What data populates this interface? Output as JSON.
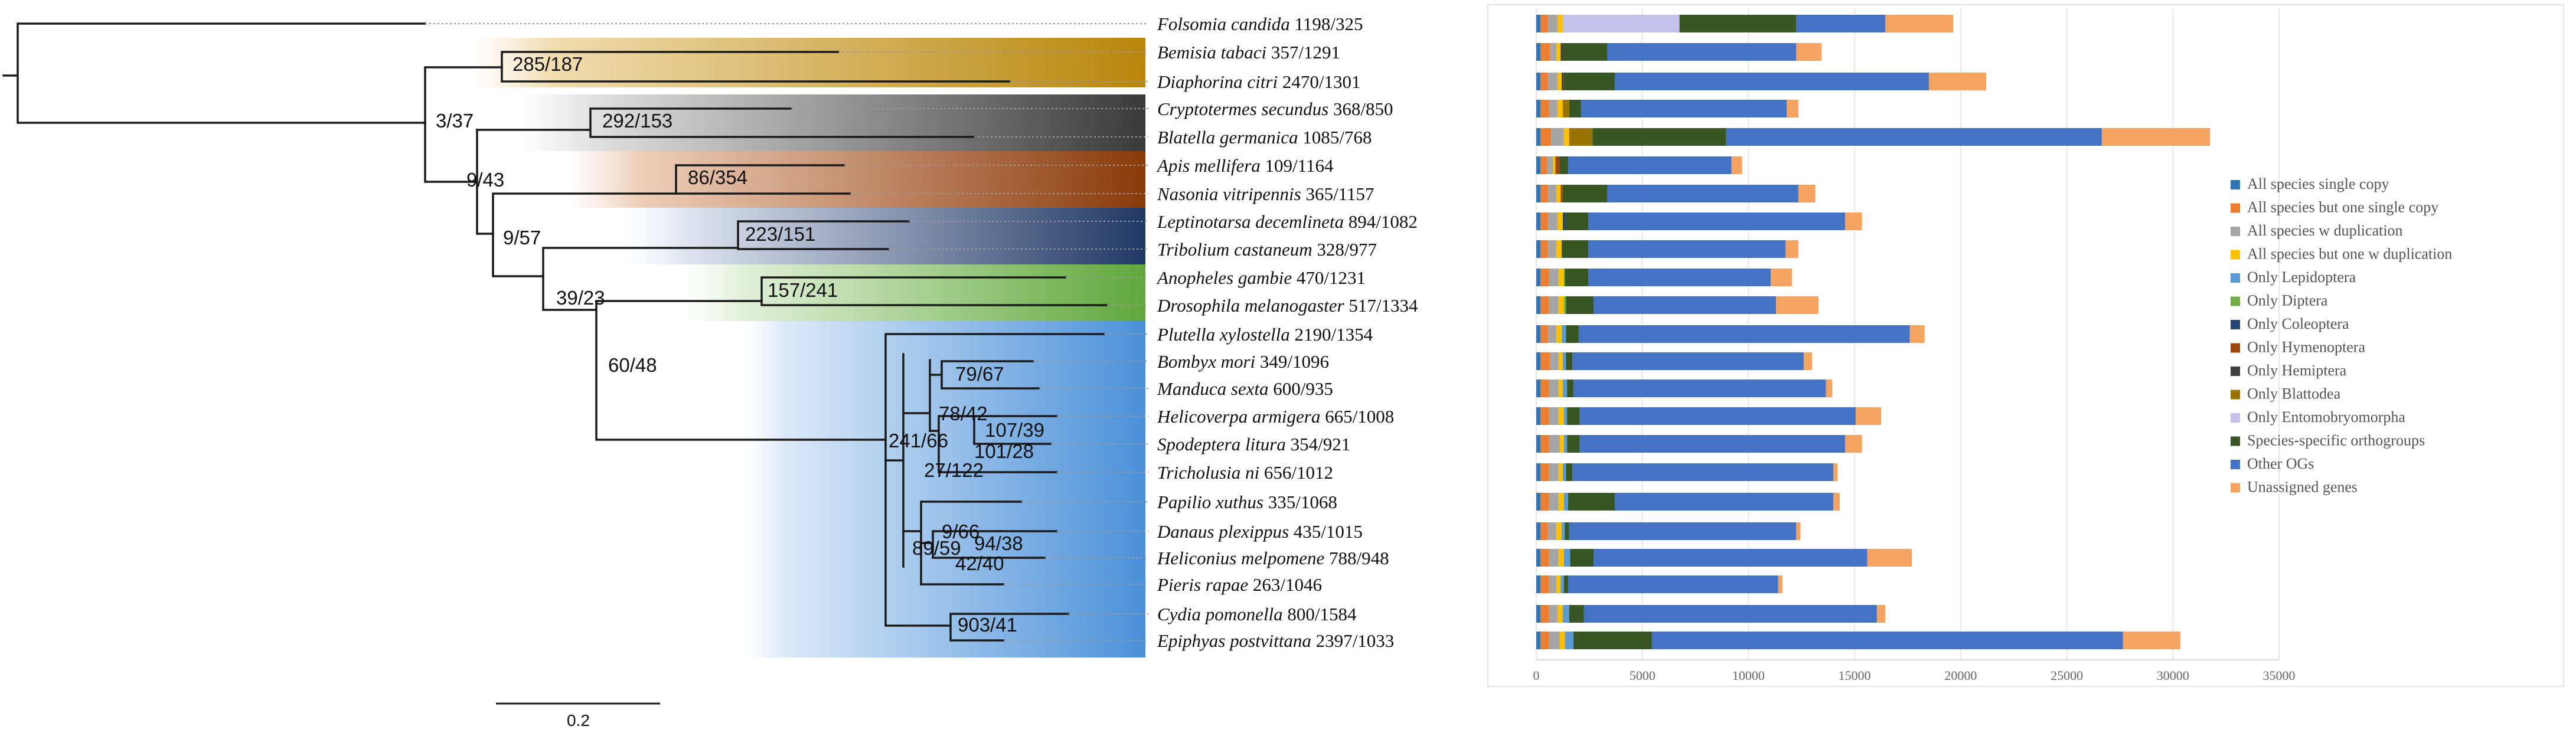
{
  "tree": {
    "scale_bar_label": "0.2",
    "taxa": [
      {
        "name": "Folsomia candida",
        "counts": "1198/325"
      },
      {
        "name": "Bemisia tabaci",
        "counts": "357/1291"
      },
      {
        "name": "Diaphorina citri",
        "counts": "2470/1301"
      },
      {
        "name": "Cryptotermes secundus",
        "counts": "368/850"
      },
      {
        "name": "Blatella germanica",
        "counts": "1085/768"
      },
      {
        "name": "Apis mellifera",
        "counts": "109/1164"
      },
      {
        "name": "Nasonia vitripennis",
        "counts": "365/1157"
      },
      {
        "name": "Leptinotarsa decemlineta",
        "counts": "894/1082"
      },
      {
        "name": "Tribolium castaneum",
        "counts": "328/977"
      },
      {
        "name": "Anopheles gambie",
        "counts": "470/1231"
      },
      {
        "name": "Drosophila melanogaster",
        "counts": "517/1334"
      },
      {
        "name": "Plutella xylostella",
        "counts": "2190/1354"
      },
      {
        "name": "Bombyx mori",
        "counts": "349/1096"
      },
      {
        "name": "Manduca sexta",
        "counts": "600/935"
      },
      {
        "name": "Helicoverpa armigera",
        "counts": "665/1008"
      },
      {
        "name": "Spodeptera litura",
        "counts": "354/921"
      },
      {
        "name": "Tricholusia ni",
        "counts": "656/1012"
      },
      {
        "name": "Papilio xuthus",
        "counts": "335/1068"
      },
      {
        "name": "Danaus plexippus",
        "counts": "435/1015"
      },
      {
        "name": "Heliconius melpomene",
        "counts": "788/948"
      },
      {
        "name": "Pieris rapae",
        "counts": "263/1046"
      },
      {
        "name": "Cydia pomonella",
        "counts": "800/1584"
      },
      {
        "name": "Epiphyas postvittana",
        "counts": "2397/1033"
      }
    ],
    "node_labels": [
      {
        "id": "n_hemiptera",
        "text": "285/187"
      },
      {
        "id": "n_blattodea",
        "text": "292/153"
      },
      {
        "id": "n_paraneoptera",
        "text": "3/37"
      },
      {
        "id": "n_hymenoptera",
        "text": "86/354"
      },
      {
        "id": "n_holometabola",
        "text": "9/43"
      },
      {
        "id": "n_coleoptera",
        "text": "223/151"
      },
      {
        "id": "n_coleo_dipt_lep",
        "text": "9/57"
      },
      {
        "id": "n_diptera",
        "text": "157/241"
      },
      {
        "id": "n_dipt_lep",
        "text": "39/23"
      },
      {
        "id": "n_lepidoptera",
        "text": "60/48"
      },
      {
        "id": "n_bombycoidea",
        "text": "79/67"
      },
      {
        "id": "n_noctuid_bomby",
        "text": "78/42"
      },
      {
        "id": "n_helico_spod",
        "text": "107/39"
      },
      {
        "id": "n_spod_trich",
        "text": "101/28"
      },
      {
        "id": "n_obtectomera",
        "text": "241/66"
      },
      {
        "id": "n_noctuidae",
        "text": "27/122"
      },
      {
        "id": "n_nymphalidae",
        "text": "9/66"
      },
      {
        "id": "n_papilionoidea",
        "text": "89/59"
      },
      {
        "id": "n_heliconiinae",
        "text": "94/38"
      },
      {
        "id": "n_pieridae",
        "text": "42/40"
      },
      {
        "id": "n_tortricidae",
        "text": "903/41"
      }
    ]
  },
  "chart_data": {
    "type": "bar",
    "orientation": "horizontal",
    "stacked": true,
    "title": "",
    "xlabel": "",
    "ylabel": "",
    "xlim": [
      0,
      35000
    ],
    "xticks": [
      "0",
      "5000",
      "10000",
      "15000",
      "20000",
      "25000",
      "30000",
      "35000"
    ],
    "legend_position": "right",
    "categories": [
      "Folsomia candida",
      "Bemisia tabaci",
      "Diaphorina citri",
      "Cryptotermes secundus",
      "Blatella germanica",
      "Apis mellifera",
      "Nasonia vitripennis",
      "Leptinotarsa decemlineta",
      "Tribolium castaneum",
      "Anopheles gambie",
      "Drosophila melanogaster",
      "Plutella xylostella",
      "Bombyx mori",
      "Manduca sexta",
      "Helicoverpa armigera",
      "Spodeptera litura",
      "Tricholusia ni",
      "Papilio xuthus",
      "Danaus plexippus",
      "Heliconius melpomene",
      "Pieris rapae",
      "Cydia pomonella",
      "Epiphyas postvittana"
    ],
    "series": [
      {
        "name": "All species single copy",
        "color": "#2e75b6",
        "values": [
          200,
          200,
          200,
          200,
          200,
          200,
          200,
          200,
          200,
          200,
          200,
          200,
          200,
          200,
          200,
          200,
          200,
          200,
          200,
          200,
          200,
          200,
          200
        ]
      },
      {
        "name": "All species but one single copy",
        "color": "#ed7d31",
        "values": [
          350,
          450,
          350,
          400,
          500,
          300,
          350,
          350,
          350,
          400,
          400,
          350,
          450,
          400,
          400,
          400,
          400,
          400,
          350,
          400,
          400,
          400,
          400
        ]
      },
      {
        "name": "All species w duplication",
        "color": "#a5a5a5",
        "values": [
          450,
          300,
          450,
          400,
          600,
          300,
          400,
          450,
          400,
          450,
          450,
          400,
          400,
          450,
          450,
          500,
          450,
          450,
          400,
          450,
          350,
          400,
          500
        ]
      },
      {
        "name": "All species but one w duplication",
        "color": "#ffc000",
        "values": [
          250,
          200,
          200,
          250,
          250,
          100,
          200,
          250,
          250,
          250,
          250,
          250,
          200,
          200,
          250,
          200,
          200,
          250,
          250,
          250,
          200,
          250,
          250
        ]
      },
      {
        "name": "Only Lepidoptera",
        "color": "#5b9bd5",
        "values": [
          0,
          0,
          0,
          0,
          0,
          0,
          0,
          0,
          0,
          0,
          0,
          200,
          150,
          200,
          150,
          150,
          150,
          200,
          150,
          300,
          150,
          300,
          400
        ]
      },
      {
        "name": "Only Diptera",
        "color": "#70ad47",
        "values": [
          0,
          0,
          0,
          0,
          0,
          0,
          0,
          0,
          0,
          50,
          100,
          0,
          0,
          0,
          0,
          0,
          0,
          0,
          0,
          0,
          0,
          0,
          0
        ]
      },
      {
        "name": "Only Coleoptera",
        "color": "#264478",
        "values": [
          0,
          0,
          0,
          0,
          0,
          0,
          0,
          100,
          50,
          0,
          0,
          0,
          0,
          0,
          0,
          0,
          0,
          0,
          0,
          0,
          0,
          0,
          0
        ]
      },
      {
        "name": "Only Hymenoptera",
        "color": "#9e480e",
        "values": [
          0,
          0,
          0,
          0,
          0,
          200,
          100,
          0,
          0,
          0,
          0,
          0,
          0,
          0,
          0,
          0,
          0,
          0,
          0,
          0,
          0,
          0,
          0
        ]
      },
      {
        "name": "Only Hemiptera",
        "color": "#404040",
        "values": [
          0,
          100,
          100,
          0,
          0,
          0,
          0,
          0,
          0,
          0,
          0,
          0,
          0,
          0,
          0,
          0,
          0,
          0,
          0,
          0,
          0,
          0,
          0
        ]
      },
      {
        "name": "Only Blattodea",
        "color": "#997300",
        "values": [
          0,
          0,
          0,
          300,
          1100,
          0,
          0,
          0,
          0,
          0,
          0,
          0,
          0,
          0,
          0,
          0,
          0,
          0,
          0,
          0,
          0,
          0,
          0
        ]
      },
      {
        "name": "Only Entomobryomorpha",
        "color": "#c5c1ea",
        "values": [
          5500,
          0,
          0,
          0,
          0,
          0,
          0,
          0,
          0,
          0,
          0,
          0,
          0,
          0,
          0,
          0,
          0,
          0,
          0,
          0,
          0,
          0,
          0
        ]
      },
      {
        "name": "Species-specific orthogroups",
        "color": "#375623",
        "values": [
          5500,
          2100,
          2400,
          550,
          6300,
          400,
          2100,
          1100,
          1200,
          1100,
          1300,
          600,
          300,
          300,
          600,
          600,
          300,
          2200,
          200,
          1100,
          200,
          700,
          3700
        ]
      },
      {
        "name": "Other OGs",
        "color": "#4472c4",
        "values": [
          4200,
          8900,
          14800,
          9700,
          17700,
          7700,
          9000,
          12100,
          9300,
          8600,
          8600,
          15600,
          10900,
          11900,
          13000,
          12500,
          12300,
          10300,
          10700,
          12900,
          9900,
          13800,
          22200
        ]
      },
      {
        "name": "Unassigned genes",
        "color": "#f4a460",
        "values": [
          3200,
          1200,
          2700,
          550,
          5100,
          500,
          800,
          800,
          600,
          1000,
          2000,
          700,
          400,
          300,
          1200,
          800,
          200,
          300,
          200,
          2100,
          200,
          400,
          2700
        ]
      }
    ]
  }
}
